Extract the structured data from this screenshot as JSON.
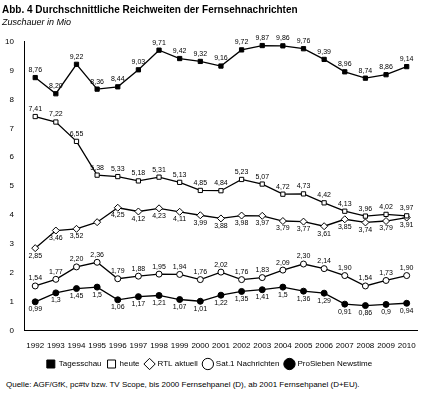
{
  "chart_data": {
    "type": "line",
    "title": "Abb. 4 Durchschnittliche Reichweiten der Fernsehnachrichten",
    "subtitle": "Zuschauer in Mio",
    "caption": "Quelle: AGF/GfK, pc#tv bzw. TV Scope, bis 2000 Fernsehpanel (D), ab 2001 Fernsehpanel (D+EU).",
    "categories": [
      "1992",
      "1993",
      "1994",
      "1995",
      "1996",
      "1997",
      "1998",
      "1999",
      "2000",
      "2001",
      "2002",
      "2003",
      "2004",
      "2005",
      "2006",
      "2007",
      "2008",
      "2009",
      "2010"
    ],
    "ylim": [
      0,
      10
    ],
    "yticks": [
      0,
      1,
      2,
      3,
      4,
      5,
      6,
      7,
      8,
      9,
      10
    ],
    "grid": false,
    "legend": "bottom",
    "data_labels": true,
    "series": [
      {
        "name": "Tagesschau",
        "color": "#000000",
        "marker": "square-filled",
        "line_style": "solid",
        "values": [
          8.76,
          8.2,
          9.22,
          8.36,
          8.44,
          9.03,
          9.71,
          9.42,
          9.32,
          9.16,
          9.72,
          9.87,
          9.86,
          9.76,
          9.39,
          8.96,
          8.74,
          8.86,
          9.14
        ],
        "value_labels": [
          "8,76",
          "8,20",
          "9,22",
          "8,36",
          "8,44",
          "9,03",
          "9,71",
          "9,42",
          "9,32",
          "9,16",
          "9,72",
          "9,87",
          "9,86",
          "9,76",
          "9,39",
          "8,96",
          "8,74",
          "8,86",
          "9,14"
        ]
      },
      {
        "name": "heute",
        "color": "#000000",
        "marker": "square-open",
        "line_style": "solid",
        "values": [
          7.41,
          7.22,
          6.55,
          5.38,
          5.33,
          5.18,
          5.31,
          5.13,
          4.85,
          4.84,
          5.23,
          5.07,
          4.72,
          4.73,
          4.42,
          4.13,
          3.96,
          4.02,
          3.97
        ],
        "value_labels": [
          "7,41",
          "7,22",
          "6,55",
          "5,38",
          "5,33",
          "5,18",
          "5,31",
          "5,13",
          "4,85",
          "4,84",
          "5,23",
          "5,07",
          "4,72",
          "4,73",
          "4,42",
          "4,13",
          "3,96",
          "4,02",
          "3,97"
        ]
      },
      {
        "name": "RTL aktuell",
        "color": "#000000",
        "marker": "diamond-open",
        "line_style": "solid",
        "values": [
          2.85,
          3.46,
          3.52,
          3.75,
          4.25,
          4.12,
          4.23,
          4.11,
          3.99,
          3.88,
          3.98,
          3.97,
          3.79,
          3.77,
          3.61,
          3.85,
          3.74,
          3.79,
          3.91
        ],
        "value_labels": [
          "2,85",
          "3,46",
          "3,52",
          null,
          "4,25",
          "4,12",
          "4,23",
          "4,11",
          "3,99",
          "3,88",
          "3,98",
          "3,97",
          "3,79",
          "3,77",
          "3,61",
          "3,85",
          "3,74",
          "3,79",
          "3,91"
        ]
      },
      {
        "name": "Sat.1 Nachrichten",
        "color": "#000000",
        "marker": "circle-open",
        "line_style": "solid",
        "values": [
          1.54,
          1.77,
          2.2,
          2.36,
          1.79,
          1.88,
          1.95,
          1.94,
          1.76,
          2.02,
          1.76,
          1.83,
          2.09,
          2.3,
          2.14,
          1.9,
          1.54,
          1.73,
          1.9
        ],
        "value_labels": [
          "1,54",
          "1,77",
          "2,20",
          "2,36",
          "1,79",
          "1,88",
          "1,95",
          "1,94",
          "1,76",
          "2,02",
          "1,76",
          "1,83",
          "2,09",
          "2,30",
          "2,14",
          "1,90",
          "1,54",
          "1,73",
          "1,90"
        ]
      },
      {
        "name": "ProSieben Newstime",
        "color": "#000000",
        "marker": "circle-filled",
        "line_style": "solid",
        "values": [
          0.99,
          1.3,
          1.45,
          1.5,
          1.06,
          1.17,
          1.21,
          1.07,
          1.01,
          1.22,
          1.35,
          1.41,
          1.5,
          1.36,
          1.29,
          0.91,
          0.86,
          0.9,
          0.94
        ],
        "value_labels": [
          "0,99",
          "1,3",
          "1,45",
          "1,5",
          "1,06",
          "1,17",
          "1,21",
          "1,07",
          "1,01",
          "1,22",
          "1,35",
          "1,41",
          "1,5",
          "1,36",
          "1,29",
          "0,91",
          "0,86",
          "0,9",
          "0,94"
        ]
      }
    ]
  }
}
